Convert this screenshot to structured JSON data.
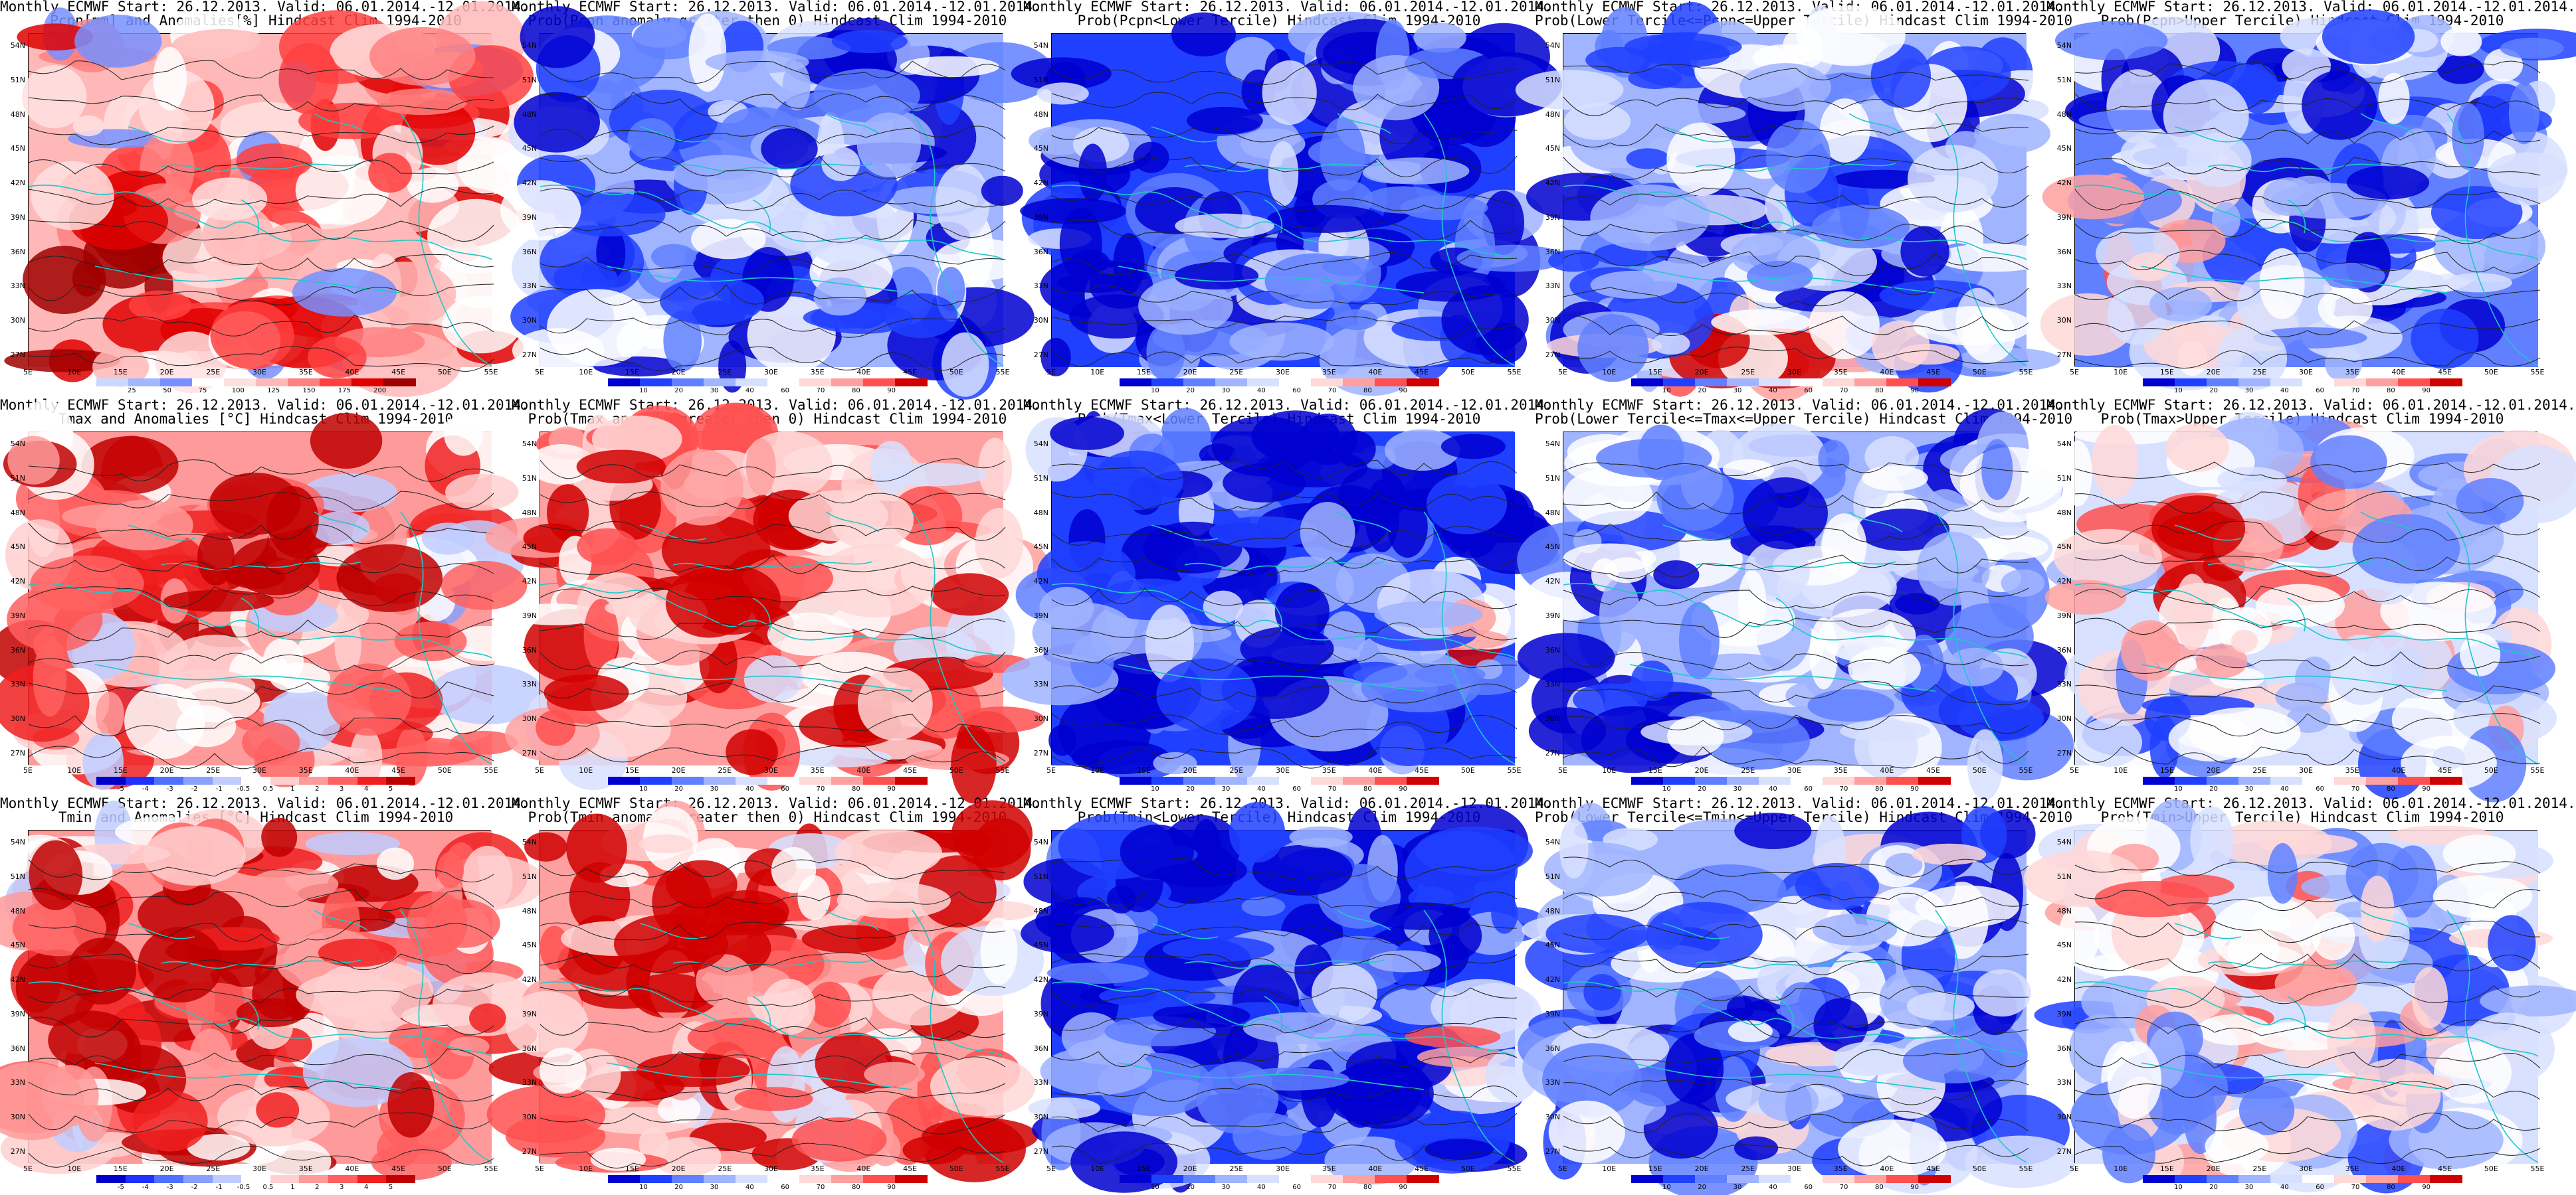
{
  "page": {
    "lat_labels": [
      "54N",
      "51N",
      "48N",
      "45N",
      "42N",
      "39N",
      "36N",
      "33N",
      "30N",
      "27N"
    ],
    "lon_labels": [
      "5E",
      "10E",
      "15E",
      "20E",
      "25E",
      "30E",
      "35E",
      "40E",
      "45E",
      "50E",
      "55E"
    ]
  },
  "palettes": {
    "precip": [
      "#c8d8ff",
      "#a0b8ff",
      "#7890ff",
      "#ffffff",
      "#ffe0e0",
      "#ffb8b8",
      "#ff8080",
      "#ff4040",
      "#e00000",
      "#a00000"
    ],
    "anom": [
      "#0000c8",
      "#2030ff",
      "#5070ff",
      "#8aa0ff",
      "#c0ccff",
      "#ffffff",
      "#ffd0d0",
      "#ff9a9a",
      "#ff6060",
      "#f02020",
      "#c00000"
    ],
    "prob": [
      "#0000d0",
      "#2040ff",
      "#6080ff",
      "#a0b4ff",
      "#d8e0ff",
      "#ffffff",
      "#ffd8d8",
      "#ffa0a0",
      "#ff5050",
      "#d00000"
    ]
  },
  "panels": [
    {
      "title1": "Monthly ECMWF Start: 26.12.2013. Valid: 06.01.2014.-12.01.2014.",
      "title2": "Pcpn[mm] and Anomalies[%]",
      "title2b": "Hindcast Clim 1994-2010",
      "palette": "precip",
      "ticks": [
        "25",
        "50",
        "75",
        "100",
        "125",
        "150",
        "175",
        "200"
      ],
      "seed": 11,
      "bias": 0.55,
      "redzone": "left"
    },
    {
      "title1": "Monthly ECMWF Start: 26.12.2013. Valid: 06.01.2014.-12.01.2014.",
      "title2": "Prob(Pcpn anomaly greater then 0)",
      "title2b": "Hindcast Clim 1994-2010",
      "palette": "prob",
      "ticks": [
        "10",
        "20",
        "30",
        "40",
        "60",
        "70",
        "80",
        "90"
      ],
      "seed": 23,
      "bias": 0.3,
      "redzone": "none"
    },
    {
      "title1": "Monthly ECMWF Start: 26.12.2013. Valid: 06.01.2014.-12.01.2014.",
      "title2": "Prob(Pcpn<Lower Tercile)",
      "title2b": "Hindcast Clim 1994-2010",
      "palette": "prob",
      "ticks": [
        "10",
        "20",
        "30",
        "40",
        "60",
        "70",
        "80",
        "90"
      ],
      "seed": 37,
      "bias": 0.15,
      "redzone": "none"
    },
    {
      "title1": "Monthly ECMWF Start: 26.12.2013. Valid: 06.01.2014.-12.01.2014.",
      "title2": "Prob(Lower Tercile<=Pcpn<=Upper Tercile)",
      "title2b": "Hindcast Clim 1994-2010",
      "palette": "prob",
      "ticks": [
        "10",
        "20",
        "30",
        "40",
        "60",
        "70",
        "80",
        "90"
      ],
      "seed": 41,
      "bias": 0.3,
      "redzone": "bottom"
    },
    {
      "title1": "Monthly ECMWF Start: 26.12.2013. Valid: 06.01.2014.-12.01.2014.",
      "title2": "Prob(Pcpn>Upper Tercile)",
      "title2b": "Hindcast Clim 1994-2010",
      "palette": "prob",
      "ticks": [
        "10",
        "20",
        "30",
        "40",
        "60",
        "70",
        "80",
        "90"
      ],
      "seed": 53,
      "bias": 0.28,
      "redzone": "left"
    },
    {
      "title1": "Monthly ECMWF Start: 26.12.2013. Valid: 06.01.2014.-12.01.2014.",
      "title2": "Tmax and Anomalies [°C]",
      "title2b": "Hindcast Clim 1994-2010",
      "palette": "anom",
      "ticks": [
        "-5",
        "-4",
        "-3",
        "-2",
        "-1",
        "-0.5",
        "0.5",
        "1",
        "2",
        "3",
        "4",
        "5"
      ],
      "seed": 61,
      "bias": 0.65,
      "redzone": "center"
    },
    {
      "title1": "Monthly ECMWF Start: 26.12.2013. Valid: 06.01.2014.-12.01.2014.",
      "title2": "Prob(Tmax anomaly greater then 0)",
      "title2b": "Hindcast Clim 1994-2010",
      "palette": "prob",
      "ticks": [
        "10",
        "20",
        "30",
        "40",
        "60",
        "70",
        "80",
        "90"
      ],
      "seed": 71,
      "bias": 0.72,
      "redzone": "center"
    },
    {
      "title1": "Monthly ECMWF Start: 26.12.2013. Valid: 06.01.2014.-12.01.2014.",
      "title2": "Prob(Tmax<Lower Tercile)",
      "title2b": "Hindcast Clim 1994-2010",
      "palette": "prob",
      "ticks": [
        "10",
        "20",
        "30",
        "40",
        "60",
        "70",
        "80",
        "90"
      ],
      "seed": 83,
      "bias": 0.12,
      "redzone": "right"
    },
    {
      "title1": "Monthly ECMWF Start: 26.12.2013. Valid: 06.01.2014.-12.01.2014.",
      "title2": "Prob(Lower Tercile<=Tmax<=Upper Tercile)",
      "title2b": "Hindcast Clim 1994-2010",
      "palette": "prob",
      "ticks": [
        "10",
        "20",
        "30",
        "40",
        "60",
        "70",
        "80",
        "90"
      ],
      "seed": 97,
      "bias": 0.3,
      "redzone": "none"
    },
    {
      "title1": "Monthly ECMWF Start: 26.12.2013. Valid: 06.01.2014.-12.01.2014.",
      "title2": "Prob(Tmax>Upper Tercile)",
      "title2b": "Hindcast Clim 1994-2010",
      "palette": "prob",
      "ticks": [
        "10",
        "20",
        "30",
        "40",
        "60",
        "70",
        "80",
        "90"
      ],
      "seed": 101,
      "bias": 0.45,
      "redzone": "center"
    },
    {
      "title1": "Monthly ECMWF Start: 26.12.2013. Valid: 06.01.2014.-12.01.2014.",
      "title2": "Tmin and Anomalies [°C]",
      "title2b": "Hindcast Clim 1994-2010",
      "palette": "anom",
      "ticks": [
        "-5",
        "-4",
        "-3",
        "-2",
        "-1",
        "-0.5",
        "0.5",
        "1",
        "2",
        "3",
        "4",
        "5"
      ],
      "seed": 113,
      "bias": 0.7,
      "redzone": "center"
    },
    {
      "title1": "Monthly ECMWF Start: 26.12.2013. Valid: 06.01.2014.-12.01.2014.",
      "title2": "Prob(Tmin anomaly greater then 0)",
      "title2b": "Hindcast Clim 1994-2010",
      "palette": "prob",
      "ticks": [
        "10",
        "20",
        "30",
        "40",
        "60",
        "70",
        "80",
        "90"
      ],
      "seed": 127,
      "bias": 0.72,
      "redzone": "center"
    },
    {
      "title1": "Monthly ECMWF Start: 26.12.2013. Valid: 06.01.2014.-12.01.2014.",
      "title2": "Prob(Tmin<Lower Tercile)",
      "title2b": "Hindcast Clim 1994-2010",
      "palette": "prob",
      "ticks": [
        "10",
        "20",
        "30",
        "40",
        "60",
        "70",
        "80",
        "90"
      ],
      "seed": 131,
      "bias": 0.14,
      "redzone": "right"
    },
    {
      "title1": "Monthly ECMWF Start: 26.12.2013. Valid: 06.01.2014.-12.01.2014.",
      "title2": "Prob(Lower Tercile<=Tmin<=Upper Tercile)",
      "title2b": "Hindcast Clim 1994-2010",
      "palette": "prob",
      "ticks": [
        "10",
        "20",
        "30",
        "40",
        "60",
        "70",
        "80",
        "90"
      ],
      "seed": 139,
      "bias": 0.32,
      "redzone": "none"
    },
    {
      "title1": "Monthly ECMWF Start: 26.12.2013. Valid: 06.01.2014.-12.01.2014.",
      "title2": "Prob(Tmin>Upper Tercile)",
      "title2b": "Hindcast Clim 1994-2010",
      "palette": "prob",
      "ticks": [
        "10",
        "20",
        "30",
        "40",
        "60",
        "70",
        "80",
        "90"
      ],
      "seed": 149,
      "bias": 0.42,
      "redzone": "center"
    }
  ]
}
